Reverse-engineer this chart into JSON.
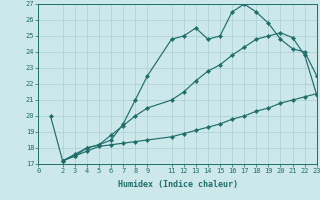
{
  "xlabel": "Humidex (Indice chaleur)",
  "bg_color": "#cde8eb",
  "grid_color": "#aacdd2",
  "line_color": "#1e6e6a",
  "xlim": [
    0,
    23
  ],
  "ylim": [
    17,
    27
  ],
  "xticks": [
    0,
    2,
    3,
    4,
    5,
    6,
    7,
    8,
    9,
    11,
    12,
    13,
    14,
    15,
    16,
    17,
    18,
    19,
    20,
    21,
    22,
    23
  ],
  "yticks": [
    17,
    18,
    19,
    20,
    21,
    22,
    23,
    24,
    25,
    26,
    27
  ],
  "line1_x": [
    1,
    2,
    3,
    4,
    5,
    6,
    7,
    8,
    9,
    11,
    12,
    13,
    14,
    15,
    16,
    17,
    18,
    19,
    20,
    21,
    22,
    23
  ],
  "line1_y": [
    20.0,
    17.2,
    17.6,
    18.0,
    18.2,
    18.8,
    19.4,
    20.0,
    20.5,
    21.0,
    21.5,
    22.2,
    22.8,
    23.2,
    23.8,
    24.3,
    24.8,
    25.0,
    25.2,
    24.9,
    23.8,
    21.3
  ],
  "line2_x": [
    2,
    3,
    4,
    5,
    6,
    7,
    8,
    9,
    11,
    12,
    13,
    14,
    15,
    16,
    17,
    18,
    19,
    20,
    21,
    22,
    23
  ],
  "line2_y": [
    17.2,
    17.5,
    17.8,
    18.1,
    18.2,
    18.3,
    18.4,
    18.5,
    18.7,
    18.9,
    19.1,
    19.3,
    19.5,
    19.8,
    20.0,
    20.3,
    20.5,
    20.8,
    21.0,
    21.2,
    21.4
  ],
  "line3_x": [
    2,
    3,
    4,
    5,
    6,
    7,
    8,
    9,
    11,
    12,
    13,
    14,
    15,
    16,
    17,
    18,
    19,
    20,
    21,
    22,
    23
  ],
  "line3_y": [
    17.2,
    17.5,
    18.0,
    18.2,
    18.5,
    19.5,
    21.0,
    22.5,
    24.8,
    25.0,
    25.5,
    24.8,
    25.0,
    26.5,
    27.0,
    26.5,
    25.8,
    24.8,
    24.2,
    24.0,
    22.5
  ]
}
